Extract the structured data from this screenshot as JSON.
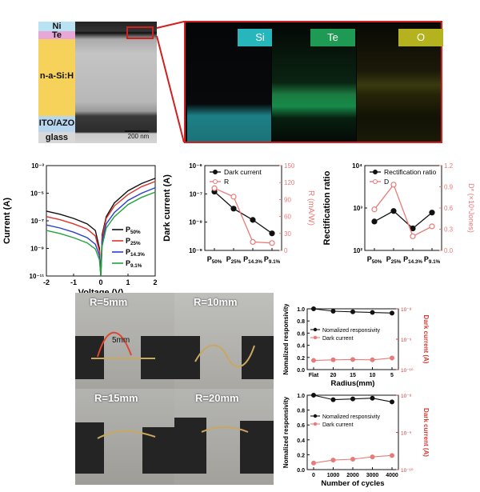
{
  "stack": {
    "layers": [
      {
        "name": "Ni",
        "color": "#b9e3f2"
      },
      {
        "name": "Te",
        "color": "#e7a8d8"
      },
      {
        "name": "n-a-Si:H",
        "color": "#f7d25a"
      },
      {
        "name": "ITO/AZO",
        "color": "#b8d7ef"
      },
      {
        "name": "glass",
        "color": "#d8d8d8"
      }
    ],
    "scalebar": "200 nm"
  },
  "eds": {
    "maps": [
      {
        "label": "Si",
        "color": "#28b6bd"
      },
      {
        "label": "Te",
        "color": "#1f9a55"
      },
      {
        "label": "O",
        "color": "#b4b31f"
      }
    ]
  },
  "photos": {
    "labels": [
      "R=5mm",
      "R=10mm",
      "R=15mm",
      "R=20mm"
    ],
    "annotation": "5mm"
  },
  "chart_data": [
    {
      "type": "line",
      "xlabel": "Voltage (V)",
      "ylabel": "Current (A)",
      "yscale": "log",
      "xlim": [
        -2,
        2
      ],
      "ylim": [
        1e-11,
        0.001
      ],
      "xticks": [
        "-2",
        "-1",
        "0",
        "1",
        "2"
      ],
      "yticks": [
        "10⁻³",
        "10⁻⁵",
        "10⁻⁷",
        "10⁻⁹",
        "10⁻¹¹"
      ],
      "legend": "bottom-right",
      "series": [
        {
          "name": "P50%",
          "label_main": "P",
          "label_sub": "50%",
          "color": "#111111",
          "x": [
            -2,
            -1.5,
            -1,
            -0.5,
            -0.2,
            -0.05,
            0,
            0.05,
            0.2,
            0.5,
            1,
            1.5,
            2
          ],
          "y": [
            5e-07,
            3e-07,
            1.5e-07,
            6e-08,
            2e-08,
            1e-09,
            1e-11,
            1e-08,
            2e-07,
            2e-06,
            1.5e-05,
            5e-05,
            0.00012
          ]
        },
        {
          "name": "P25%",
          "label_main": "P",
          "label_sub": "25%",
          "color": "#e0322c",
          "x": [
            -2,
            -1.5,
            -1,
            -0.5,
            -0.2,
            -0.05,
            0,
            0.05,
            0.2,
            0.5,
            1,
            1.5,
            2
          ],
          "y": [
            2e-07,
            1.2e-07,
            6e-08,
            2.5e-08,
            8e-09,
            6e-10,
            1e-11,
            6e-09,
            1.5e-07,
            1.2e-06,
            8e-06,
            3e-05,
            7e-05
          ]
        },
        {
          "name": "P14.3%",
          "label_main": "P",
          "label_sub": "14.3%",
          "color": "#2a3fd1",
          "x": [
            -2,
            -1.5,
            -1,
            -0.5,
            -0.2,
            -0.05,
            0,
            0.05,
            0.2,
            0.5,
            1,
            1.5,
            2
          ],
          "y": [
            5e-08,
            3e-08,
            1.5e-08,
            6e-09,
            2e-09,
            3e-10,
            1e-11,
            3e-09,
            6e-08,
            4e-07,
            3e-06,
            1e-05,
            2.5e-05
          ]
        },
        {
          "name": "P9.1%",
          "label_main": "P",
          "label_sub": "9.1%",
          "color": "#22a33a",
          "x": [
            -2,
            -1.5,
            -1,
            -0.5,
            -0.2,
            -0.05,
            0,
            0.05,
            0.2,
            0.5,
            1,
            1.5,
            2
          ],
          "y": [
            2e-08,
            1.2e-08,
            6e-09,
            2.5e-09,
            9e-10,
            1.5e-10,
            1e-11,
            1.5e-09,
            3e-08,
            2e-07,
            1.5e-06,
            5e-06,
            1.2e-05
          ]
        }
      ]
    },
    {
      "type": "line",
      "ylabel": "Dark current (A)",
      "ylabel_right": "R (mA/W)",
      "yscale": "log",
      "ylim": [
        1e-09,
        1e-06
      ],
      "yticks": [
        "10⁻⁶",
        "10⁻⁷",
        "10⁻⁸",
        "10⁻⁹"
      ],
      "ylim_right": [
        0,
        150
      ],
      "yticks_right": [
        "150",
        "120",
        "90",
        "60",
        "30",
        "0"
      ],
      "categories": [
        {
          "main": "P",
          "sub": "50%"
        },
        {
          "main": "P",
          "sub": "25%"
        },
        {
          "main": "P",
          "sub": "14.3%"
        },
        {
          "main": "P",
          "sub": "9.1%"
        }
      ],
      "legend": "top-right",
      "series": [
        {
          "name": "Dark current",
          "axis": "left",
          "color": "#111111",
          "values": [
            1.2e-07,
            3e-08,
            1.2e-08,
            4e-09
          ]
        },
        {
          "name": "R",
          "axis": "right",
          "color": "#e87b78",
          "values": [
            110,
            95,
            15,
            13
          ]
        }
      ]
    },
    {
      "type": "line",
      "ylabel": "Rectification ratio",
      "ylabel_right_main": "D*",
      "ylabel_right_unit": "(×10⁹Jones)",
      "yscale": "log",
      "ylim": [
        100,
        10000
      ],
      "yticks": [
        "10⁴",
        "10³",
        "10²"
      ],
      "ylim_right": [
        0,
        1.2
      ],
      "yticks_right": [
        "1.2",
        "0.9",
        "0.6",
        "0.3",
        "0.0"
      ],
      "categories": [
        {
          "main": "P",
          "sub": "50%"
        },
        {
          "main": "P",
          "sub": "25%"
        },
        {
          "main": "P",
          "sub": "14.3%"
        },
        {
          "main": "P",
          "sub": "9.1%"
        }
      ],
      "legend": "top-right",
      "series": [
        {
          "name": "Rectification ratio",
          "axis": "left",
          "color": "#111111",
          "values": [
            480,
            850,
            330,
            780
          ]
        },
        {
          "name": "D",
          "axis": "right",
          "color": "#e87b78",
          "values": [
            0.58,
            0.93,
            0.2,
            0.34
          ]
        }
      ]
    },
    {
      "type": "line",
      "xlabel": "Radius(mm)",
      "ylabel": "Nomalized responsivity",
      "ylabel_right": "Dark current (A)",
      "ylim": [
        0,
        1.0
      ],
      "yticks": [
        "1.0",
        "0.8",
        "0.6",
        "0.4",
        "0.2",
        "0.0"
      ],
      "yscale_right": "log",
      "ylim_right": [
        1e-10,
        1e-08
      ],
      "yticks_right": [
        "10⁻⁸",
        "10⁻⁹",
        "10⁻¹⁰"
      ],
      "categories": [
        "Flat",
        "20",
        "15",
        "10",
        "5"
      ],
      "legend": "center-right",
      "series": [
        {
          "name": "Nomalized responsivity",
          "axis": "left",
          "color": "#111111",
          "values": [
            1.0,
            0.96,
            0.95,
            0.94,
            0.93
          ]
        },
        {
          "name": "Dark current",
          "axis": "right",
          "color": "#e87b78",
          "values": [
            2e-10,
            2.1e-10,
            2.15e-10,
            2.1e-10,
            2.4e-10
          ]
        }
      ]
    },
    {
      "type": "line",
      "xlabel": "Number of cycles",
      "ylabel": "Nomalized responsivity",
      "ylabel_right": "Dark current (A)",
      "ylim": [
        0,
        1.0
      ],
      "yticks": [
        "1.0",
        "0.8",
        "0.6",
        "0.4",
        "0.2",
        "0.0"
      ],
      "yscale_right": "log",
      "ylim_right": [
        1e-10,
        1e-08
      ],
      "yticks_right": [
        "10⁻⁸",
        "10⁻⁹",
        "10⁻¹⁰"
      ],
      "x": [
        0,
        1000,
        2000,
        3000,
        4000
      ],
      "xticks": [
        "0",
        "1000",
        "2000",
        "3000",
        "4000"
      ],
      "legend": "center-right",
      "series": [
        {
          "name": "Nomalized responsivity",
          "axis": "left",
          "color": "#111111",
          "values": [
            1.0,
            0.94,
            0.95,
            0.96,
            0.91
          ]
        },
        {
          "name": "Dark current",
          "axis": "right",
          "color": "#e87b78",
          "values": [
            1.5e-10,
            1.8e-10,
            1.9e-10,
            2.2e-10,
            2.4e-10
          ]
        }
      ]
    }
  ]
}
